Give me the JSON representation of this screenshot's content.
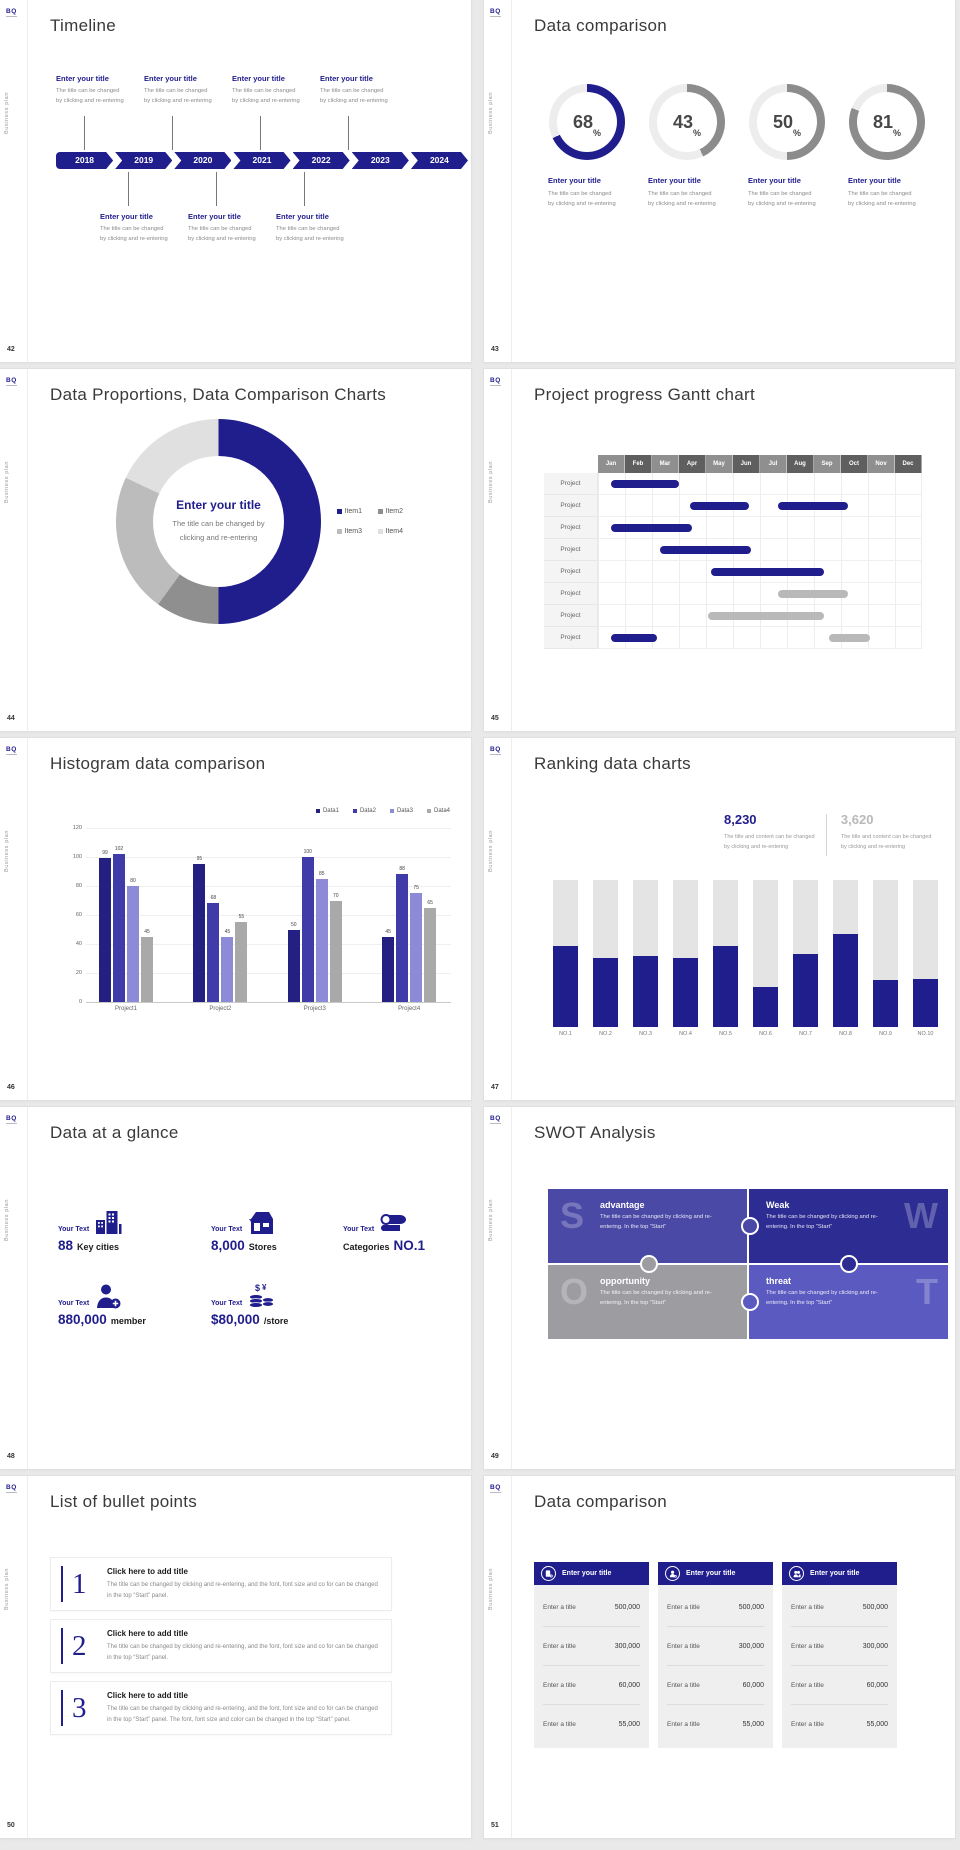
{
  "brand": {
    "logo_text": "BQ",
    "sidebar_label": "Business plan"
  },
  "shared": {
    "enter_your_title": "Enter your title",
    "title_change_line1": "The title can be changed",
    "title_change_line2": "by clicking and re-entering",
    "percent_sign": "%"
  },
  "slides": {
    "timeline": {
      "number": "42",
      "title": "Timeline",
      "years": [
        "2018",
        "2019",
        "2020",
        "2021",
        "2022",
        "2023",
        "2024"
      ]
    },
    "rings": {
      "number": "43",
      "title": "Data comparison"
    },
    "donut": {
      "number": "44",
      "title": "Data Proportions, Data Comparison Charts",
      "center_title": "Enter your title",
      "center_line1": "The title can be changed by",
      "center_line2": "clicking and re-entering"
    },
    "gantt": {
      "number": "45",
      "title": "Project progress Gantt chart"
    },
    "histogram": {
      "number": "46",
      "title": "Histogram data comparison"
    },
    "ranking": {
      "number": "47",
      "title": "Ranking data charts",
      "primary_value": "8,230",
      "secondary_value": "3,620",
      "desc_line1": "The title and content can be changed",
      "desc_line2": "by clicking and re-entering"
    },
    "glance": {
      "number": "48",
      "title": "Data at a glance",
      "stats": [
        {
          "label": "Your Text",
          "big": "88",
          "small": "Key cities",
          "icon": "buildings-icon"
        },
        {
          "label": "Your Text",
          "big": "8,000",
          "small": "Stores",
          "icon": "store-icon"
        },
        {
          "label": "Your Text",
          "big": "NO.1",
          "small": "Categories",
          "icon": "categories-icon"
        },
        {
          "label": "Your Text",
          "big": "880,000",
          "small": "member",
          "icon": "member-icon"
        },
        {
          "label": "Your Text",
          "big": "$80,000",
          "small": "/store",
          "icon": "money-icon"
        }
      ]
    },
    "swot": {
      "number": "49",
      "title": "SWOT Analysis",
      "quads": [
        {
          "letter": "S",
          "word": "advantage",
          "text": "The title can be changed by clicking and re-entering. In the top “Start”",
          "color": "#4a49a6"
        },
        {
          "letter": "W",
          "word": "Weak",
          "text": "The title can be changed by clicking and re-entering. In the top “Start”",
          "color": "#2d2c92"
        },
        {
          "letter": "O",
          "word": "opportunity",
          "text": "The title can be changed by clicking and re-entering. In the top “Start”",
          "color": "#9d9da1"
        },
        {
          "letter": "T",
          "word": "threat",
          "text": "The title can be changed by clicking and re-entering. In the top “Start”",
          "color": "#5b5ac1"
        }
      ]
    },
    "bullets": {
      "number": "50",
      "title": "List of bullet points",
      "items": [
        {
          "num": "1",
          "title": "Click here to add title",
          "text": "The title can be changed by clicking and re-entering, and the font, font size and co for can be changed in the top “Start” panel."
        },
        {
          "num": "2",
          "title": "Click here to add title",
          "text": "The title can be changed by clicking and re-entering, and the font, font size and co for can be changed in the top “Start” panel."
        },
        {
          "num": "3",
          "title": "Click here to add title",
          "text": "The title can be changed by clicking and re-entering, and the font, font size and co for can be changed in the top “Start” panel. The font, font size and color can be changed in the top “Start” panel."
        }
      ]
    },
    "compare": {
      "number": "51",
      "title": "Data comparison",
      "cards": [
        {
          "header": "Enter your title",
          "icon": "device-user-icon"
        },
        {
          "header": "Enter your title",
          "icon": "user-plus-icon"
        },
        {
          "header": "Enter your title",
          "icon": "users-icon"
        }
      ],
      "rows": [
        {
          "label": "Enter a title",
          "value": "500,000"
        },
        {
          "label": "Enter a title",
          "value": "300,000"
        },
        {
          "label": "Enter a title",
          "value": "60,000"
        },
        {
          "label": "Enter a title",
          "value": "55,000"
        }
      ]
    }
  },
  "chart_data": [
    {
      "id": "percent_rings",
      "type": "donut-progress",
      "title": "Data comparison",
      "values": [
        68,
        43,
        50,
        81
      ],
      "unit": "%",
      "colors": [
        "#201d8c",
        "#8c8c8c",
        "#8c8c8c",
        "#8c8c8c"
      ],
      "track_color": "#ededed"
    },
    {
      "id": "proportions_donut",
      "type": "pie",
      "title": "Data Proportions, Data Comparison Charts",
      "legend": [
        "Item1",
        "Item2",
        "Item3",
        "Item4"
      ],
      "values": [
        50,
        10,
        22,
        18
      ],
      "colors": [
        "#201d8c",
        "#8f8f8f",
        "#bcbcbc",
        "#e0e0e0"
      ],
      "legend_position": "right"
    },
    {
      "id": "gantt",
      "type": "gantt",
      "title": "Project progress Gantt chart",
      "months": [
        "Jan",
        "Feb",
        "Mar",
        "Apr",
        "May",
        "Jun",
        "Jul",
        "Aug",
        "Sep",
        "Oct",
        "Nov",
        "Dec"
      ],
      "row_label": "Project",
      "bar_colors": {
        "blue": "#201d8c",
        "gray": "#b9b9b9"
      },
      "rows": [
        {
          "bars": [
            {
              "start": 0.5,
              "end": 3.0,
              "color": "blue"
            }
          ]
        },
        {
          "bars": [
            {
              "start": 3.4,
              "end": 5.6,
              "color": "blue"
            },
            {
              "start": 6.7,
              "end": 9.3,
              "color": "blue"
            }
          ]
        },
        {
          "bars": [
            {
              "start": 0.5,
              "end": 3.5,
              "color": "blue"
            }
          ]
        },
        {
          "bars": [
            {
              "start": 2.3,
              "end": 5.7,
              "color": "blue"
            }
          ]
        },
        {
          "bars": [
            {
              "start": 4.2,
              "end": 8.4,
              "color": "blue"
            }
          ]
        },
        {
          "bars": [
            {
              "start": 6.7,
              "end": 9.3,
              "color": "gray"
            }
          ]
        },
        {
          "bars": [
            {
              "start": 4.1,
              "end": 8.4,
              "color": "gray"
            }
          ]
        },
        {
          "bars": [
            {
              "start": 0.5,
              "end": 2.2,
              "color": "blue"
            },
            {
              "start": 8.6,
              "end": 10.1,
              "color": "gray"
            }
          ]
        }
      ]
    },
    {
      "id": "histogram",
      "type": "bar",
      "title": "Histogram data comparison",
      "categories": [
        "Project1",
        "Project2",
        "Project3",
        "Project4"
      ],
      "series": [
        {
          "name": "Data1",
          "color": "#232082",
          "values": [
            99,
            95,
            50,
            45
          ]
        },
        {
          "name": "Data2",
          "color": "#3f3caa",
          "values": [
            102,
            68,
            100,
            88
          ]
        },
        {
          "name": "Data3",
          "color": "#8d8bd8",
          "values": [
            80,
            45,
            85,
            75
          ]
        },
        {
          "name": "Data4",
          "color": "#a9a9a9",
          "values": [
            45,
            55,
            70,
            65
          ]
        }
      ],
      "ylim": [
        0,
        120
      ],
      "yticks": [
        0,
        20,
        40,
        60,
        80,
        100,
        120
      ],
      "grid": true,
      "legend_position": "top-right"
    },
    {
      "id": "ranking",
      "type": "bar",
      "title": "Ranking data charts",
      "categories": [
        "NO.1",
        "NO.2",
        "NO.3",
        "NO.4",
        "NO.5",
        "NO.6",
        "NO.7",
        "NO.8",
        "NO.9",
        "NO.10"
      ],
      "values": [
        55,
        47,
        48,
        47,
        55,
        27,
        50,
        63,
        32,
        33
      ],
      "ylim": [
        0,
        100
      ],
      "fill_color": "#201d8c",
      "track_color": "#e4e4e4"
    }
  ]
}
